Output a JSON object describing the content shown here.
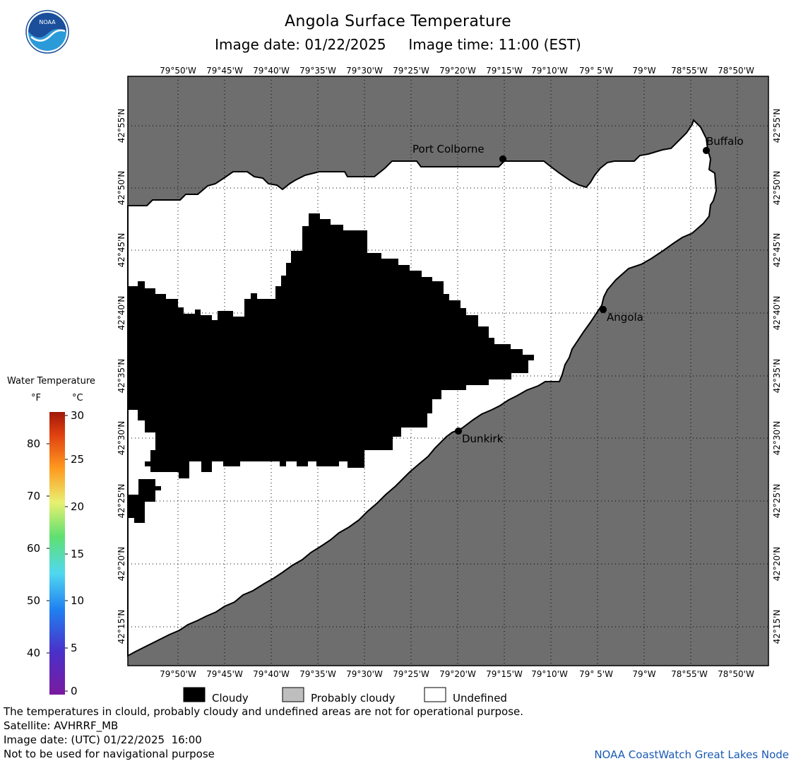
{
  "header": {
    "title": "Angola Surface Temperature",
    "image_date_label": "Image date: 01/22/2025",
    "image_time_label": "Image time: 11:00 (EST)"
  },
  "logo": {
    "text": "NOAA"
  },
  "map": {
    "lon_labels": [
      "79°50'W",
      "79°45'W",
      "79°40'W",
      "79°35'W",
      "79°30'W",
      "79°25'W",
      "79°20'W",
      "79°15'W",
      "79°10'W",
      "79° 5'W",
      "79°W",
      "78°55'W",
      "78°50'W"
    ],
    "lat_labels": [
      "42°55'N",
      "42°50'N",
      "42°45'N",
      "42°40'N",
      "42°35'N",
      "42°30'N",
      "42°25'N",
      "42°20'N",
      "42°15'N"
    ],
    "cities": [
      {
        "name": "Port Colborne"
      },
      {
        "name": "Buffalo"
      },
      {
        "name": "Angola"
      },
      {
        "name": "Dunkirk"
      }
    ],
    "colors": {
      "land": "#6e6e6e",
      "cloudy": "#000000",
      "undefined": "#ffffff",
      "probably_cloudy": "#bebebe"
    }
  },
  "legend": {
    "title": "Water Temperature",
    "unit_f": "°F",
    "unit_c": "°C",
    "f_ticks": [
      "80",
      "70",
      "60",
      "50",
      "40"
    ],
    "c_ticks": [
      "30",
      "25",
      "20",
      "15",
      "10",
      "5",
      "0"
    ]
  },
  "key": {
    "cloudy": "Cloudy",
    "probably_cloudy": "Probably cloudy",
    "undefined": "Undefined"
  },
  "footer": {
    "line1": "The temperatures in clould, probably cloudy and undefined areas are not for operational purpose.",
    "line2": "Satellite: AVHRRF_MB",
    "line3": "Image date: (UTC) 01/22/2025  16:00",
    "line4": "Not to be used for navigational purpose",
    "credit": "NOAA CoastWatch Great Lakes Node"
  }
}
